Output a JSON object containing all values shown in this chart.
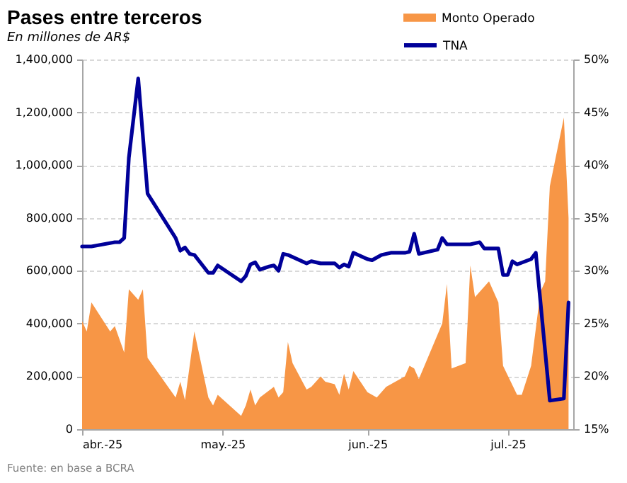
{
  "chart_data": {
    "type": "area",
    "title": "Pases entre terceros",
    "subtitle": "En millones de AR$",
    "annotations": [
      "Fuente: en base a BCRA"
    ],
    "xlim": [
      "2025-04-01",
      "2025-07-15"
    ],
    "xticks": [
      {
        "value": "2025-04-01",
        "label": "abr.-25"
      },
      {
        "value": "2025-05-01",
        "label": "may.-25"
      },
      {
        "value": "2025-06-01",
        "label": "jun.-25"
      },
      {
        "value": "2025-07-01",
        "label": "jul.-25"
      }
    ],
    "ylim": [
      0,
      1400000
    ],
    "yticks": [
      {
        "value": 0,
        "label": "0"
      },
      {
        "value": 200000,
        "label": "200,000"
      },
      {
        "value": 400000,
        "label": "400,000"
      },
      {
        "value": 600000,
        "label": "600,000"
      },
      {
        "value": 800000,
        "label": "800,000"
      },
      {
        "value": 1000000,
        "label": "1,000,000"
      },
      {
        "value": 1200000,
        "label": "1,200,000"
      },
      {
        "value": 1400000,
        "label": "1,400,000"
      }
    ],
    "y2lim": [
      15,
      50
    ],
    "y2ticks": [
      {
        "value": 15,
        "label": "15%"
      },
      {
        "value": 20,
        "label": "20%"
      },
      {
        "value": 25,
        "label": "25%"
      },
      {
        "value": 30,
        "label": "30%"
      },
      {
        "value": 35,
        "label": "35%"
      },
      {
        "value": 40,
        "label": "40%"
      },
      {
        "value": 45,
        "label": "45%"
      },
      {
        "value": 50,
        "label": "50%"
      }
    ],
    "grid": "y",
    "legend": "top right",
    "series": [
      {
        "name": "Monto Operado",
        "color": "#f79646",
        "x": [
          "2025-04-01",
          "2025-04-02",
          "2025-04-03",
          "2025-04-07",
          "2025-04-08",
          "2025-04-10",
          "2025-04-11",
          "2025-04-13",
          "2025-04-14",
          "2025-04-15",
          "2025-04-21",
          "2025-04-22",
          "2025-04-23",
          "2025-04-25",
          "2025-04-28",
          "2025-04-29",
          "2025-04-30",
          "2025-05-05",
          "2025-05-06",
          "2025-05-07",
          "2025-05-08",
          "2025-05-09",
          "2025-05-12",
          "2025-05-13",
          "2025-05-14",
          "2025-05-15",
          "2025-05-16",
          "2025-05-19",
          "2025-05-20",
          "2025-05-22",
          "2025-05-23",
          "2025-05-25",
          "2025-05-26",
          "2025-05-27",
          "2025-05-28",
          "2025-05-29",
          "2025-06-01",
          "2025-06-03",
          "2025-06-05",
          "2025-06-09",
          "2025-06-10",
          "2025-06-11",
          "2025-06-12",
          "2025-06-17",
          "2025-06-18",
          "2025-06-19",
          "2025-06-22",
          "2025-06-23",
          "2025-06-24",
          "2025-06-27",
          "2025-06-29",
          "2025-06-30",
          "2025-07-03",
          "2025-07-04",
          "2025-07-06",
          "2025-07-08",
          "2025-07-09",
          "2025-07-10",
          "2025-07-13",
          "2025-07-14"
        ],
        "values": [
          410000,
          370000,
          480000,
          370000,
          390000,
          290000,
          530000,
          490000,
          530000,
          270000,
          120000,
          180000,
          110000,
          370000,
          120000,
          90000,
          130000,
          50000,
          90000,
          150000,
          90000,
          120000,
          160000,
          120000,
          140000,
          330000,
          250000,
          150000,
          160000,
          200000,
          180000,
          170000,
          130000,
          210000,
          150000,
          220000,
          140000,
          120000,
          160000,
          200000,
          240000,
          230000,
          190000,
          400000,
          550000,
          230000,
          250000,
          620000,
          500000,
          560000,
          480000,
          240000,
          130000,
          130000,
          240000,
          520000,
          560000,
          920000,
          1180000,
          800000
        ]
      },
      {
        "name": "TNA",
        "type": "line",
        "axis": "y2",
        "color": "#000099",
        "line_style": "solid",
        "x": [
          "2025-04-01",
          "2025-04-03",
          "2025-04-08",
          "2025-04-09",
          "2025-04-10",
          "2025-04-11",
          "2025-04-13",
          "2025-04-15",
          "2025-04-21",
          "2025-04-22",
          "2025-04-23",
          "2025-04-24",
          "2025-04-25",
          "2025-04-28",
          "2025-04-29",
          "2025-04-30",
          "2025-05-05",
          "2025-05-06",
          "2025-05-07",
          "2025-05-08",
          "2025-05-09",
          "2025-05-11",
          "2025-05-12",
          "2025-05-13",
          "2025-05-14",
          "2025-05-15",
          "2025-05-19",
          "2025-05-20",
          "2025-05-22",
          "2025-05-25",
          "2025-05-26",
          "2025-05-27",
          "2025-05-28",
          "2025-05-29",
          "2025-06-01",
          "2025-06-02",
          "2025-06-04",
          "2025-06-06",
          "2025-06-09",
          "2025-06-10",
          "2025-06-11",
          "2025-06-12",
          "2025-06-16",
          "2025-06-17",
          "2025-06-18",
          "2025-06-23",
          "2025-06-25",
          "2025-06-26",
          "2025-06-29",
          "2025-06-30",
          "2025-07-01",
          "2025-07-02",
          "2025-07-03",
          "2025-07-06",
          "2025-07-07",
          "2025-07-10",
          "2025-07-13",
          "2025-07-14"
        ],
        "values": [
          32.3,
          32.3,
          32.7,
          32.7,
          33.1,
          40.7,
          48.2,
          37.3,
          33.1,
          31.9,
          32.2,
          31.6,
          31.5,
          29.8,
          29.8,
          30.5,
          29.0,
          29.5,
          30.6,
          30.8,
          30.1,
          30.4,
          30.5,
          30.0,
          31.6,
          31.5,
          30.7,
          30.9,
          30.7,
          30.7,
          30.3,
          30.6,
          30.4,
          31.7,
          31.1,
          31.0,
          31.5,
          31.7,
          31.7,
          31.8,
          33.5,
          31.6,
          32.0,
          33.1,
          32.5,
          32.5,
          32.7,
          32.1,
          32.1,
          29.6,
          29.6,
          30.9,
          30.6,
          31.1,
          31.7,
          17.7,
          17.9,
          27.0
        ]
      }
    ]
  }
}
